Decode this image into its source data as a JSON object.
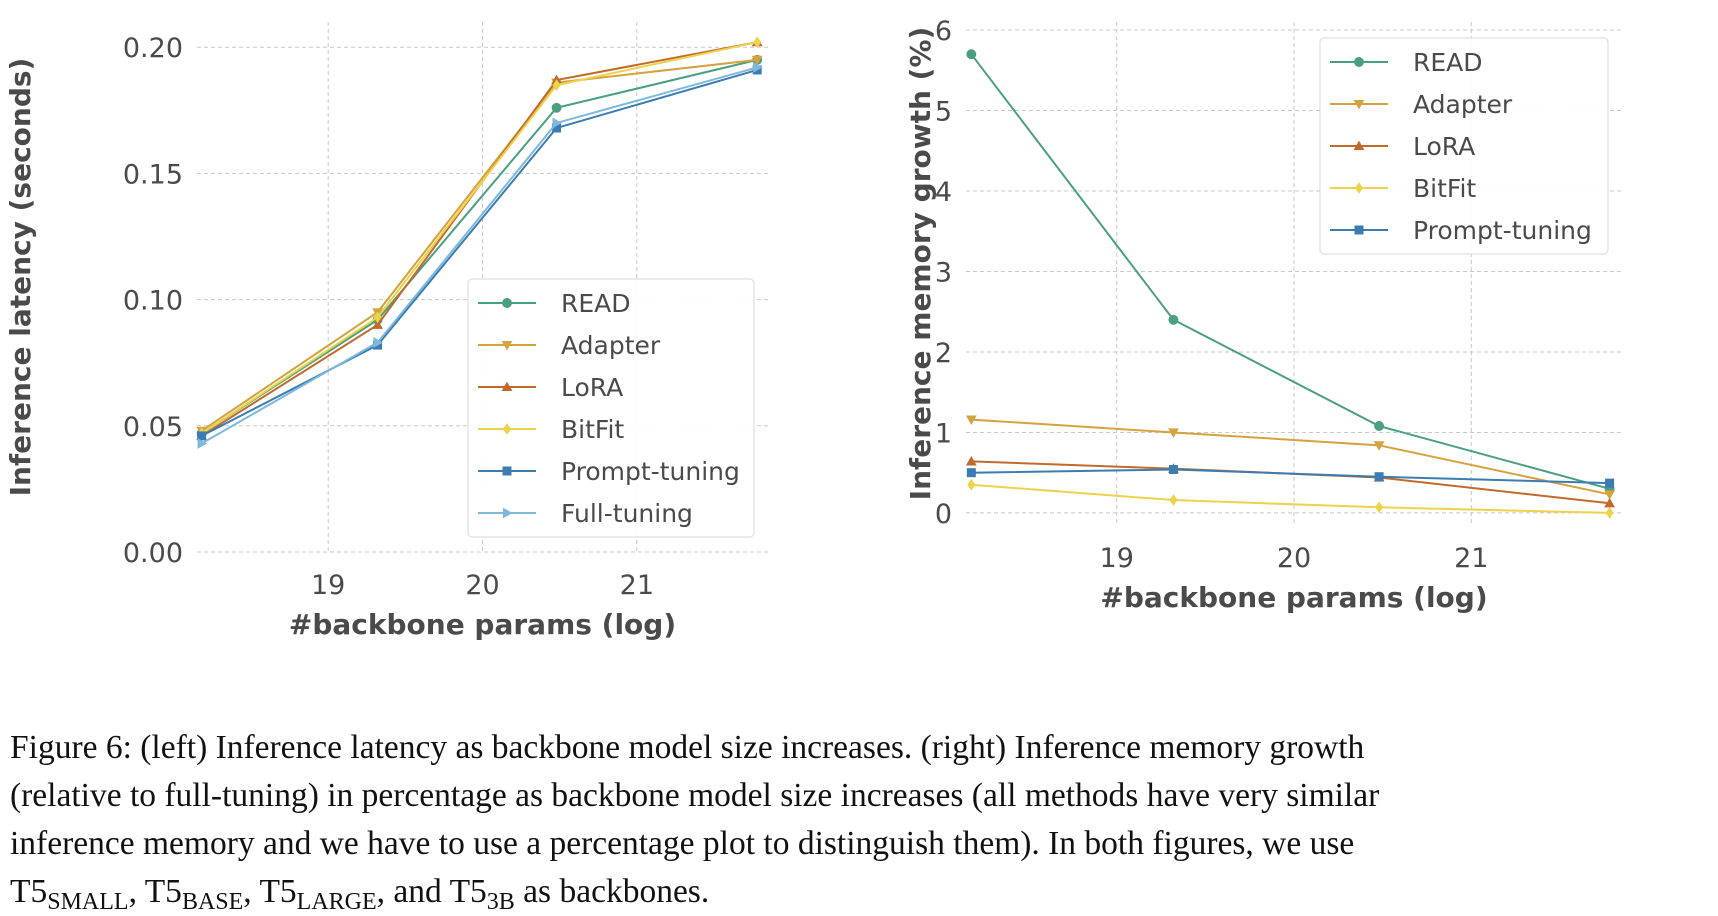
{
  "chart_data": [
    {
      "type": "line",
      "title": "",
      "xlabel": "#backbone params (log)",
      "ylabel": "Inference latency (seconds)",
      "xlim": [
        18.15,
        21.85
      ],
      "ylim": [
        0.0,
        0.21
      ],
      "xticks": [
        19,
        20,
        21
      ],
      "xtick_labels": [
        "19",
        "20",
        "21"
      ],
      "yticks": [
        0.0,
        0.05,
        0.1,
        0.15,
        0.2
      ],
      "ytick_labels": [
        "0.00",
        "0.05",
        "0.10",
        "0.15",
        "0.20"
      ],
      "grid": true,
      "legend_position": "lower-right",
      "x": [
        18.18,
        19.32,
        20.48,
        21.78
      ],
      "series": [
        {
          "name": "READ",
          "color": "#4a9f80",
          "marker": "circle",
          "values": [
            0.047,
            0.092,
            0.176,
            0.195
          ]
        },
        {
          "name": "Adapter",
          "color": "#d4a23e",
          "marker": "triangle-down",
          "values": [
            0.048,
            0.095,
            0.186,
            0.195
          ]
        },
        {
          "name": "LoRA",
          "color": "#c26a2c",
          "marker": "triangle-up",
          "values": [
            0.046,
            0.09,
            0.187,
            0.202
          ]
        },
        {
          "name": "BitFit",
          "color": "#ecd34a",
          "marker": "diamond",
          "values": [
            0.047,
            0.093,
            0.185,
            0.202
          ]
        },
        {
          "name": "Prompt-tuning",
          "color": "#3b7cb1",
          "marker": "square",
          "values": [
            0.046,
            0.082,
            0.168,
            0.191
          ]
        },
        {
          "name": "Full-tuning",
          "color": "#7eb8dc",
          "marker": "triangle-right",
          "values": [
            0.043,
            0.083,
            0.17,
            0.192
          ]
        }
      ]
    },
    {
      "type": "line",
      "title": "",
      "xlabel": "#backbone params (log)",
      "ylabel": "Inference memory growth (%)",
      "xlim": [
        18.15,
        21.85
      ],
      "ylim": [
        -0.15,
        6.1
      ],
      "xticks": [
        19,
        20,
        21
      ],
      "xtick_labels": [
        "19",
        "20",
        "21"
      ],
      "yticks": [
        0,
        1,
        2,
        3,
        4,
        5,
        6
      ],
      "ytick_labels": [
        "0",
        "1",
        "2",
        "3",
        "4",
        "5",
        "6"
      ],
      "grid": true,
      "legend_position": "upper-right",
      "x": [
        18.18,
        19.32,
        20.48,
        21.78
      ],
      "series": [
        {
          "name": "READ",
          "color": "#4a9f80",
          "marker": "circle",
          "values": [
            5.7,
            2.4,
            1.08,
            0.3
          ]
        },
        {
          "name": "Adapter",
          "color": "#d4a23e",
          "marker": "triangle-down",
          "values": [
            1.16,
            1.0,
            0.84,
            0.23
          ]
        },
        {
          "name": "LoRA",
          "color": "#c26a2c",
          "marker": "triangle-up",
          "values": [
            0.64,
            0.55,
            0.44,
            0.12
          ]
        },
        {
          "name": "BitFit",
          "color": "#ecd34a",
          "marker": "diamond",
          "values": [
            0.35,
            0.16,
            0.07,
            0.0
          ]
        },
        {
          "name": "Prompt-tuning",
          "color": "#3b7cb1",
          "marker": "square",
          "values": [
            0.5,
            0.54,
            0.45,
            0.37
          ]
        }
      ]
    }
  ],
  "caption": {
    "part1": "Figure 6: (left) Inference latency as backbone model size increases. (right) Inference memory growth",
    "part2": "(relative to full-tuning) in percentage as backbone model size increases (all methods have very similar",
    "part3": "inference memory and we have to use a percentage plot to distinguish them). In both figures, we use",
    "t5_base_text": "T5",
    "sub_small": "SMALL",
    "sub_base": "BASE",
    "sub_large": "LARGE",
    "sub_3b": "3B",
    "comma": ", ",
    "and_text": ", and ",
    "ending": " as backbones."
  }
}
